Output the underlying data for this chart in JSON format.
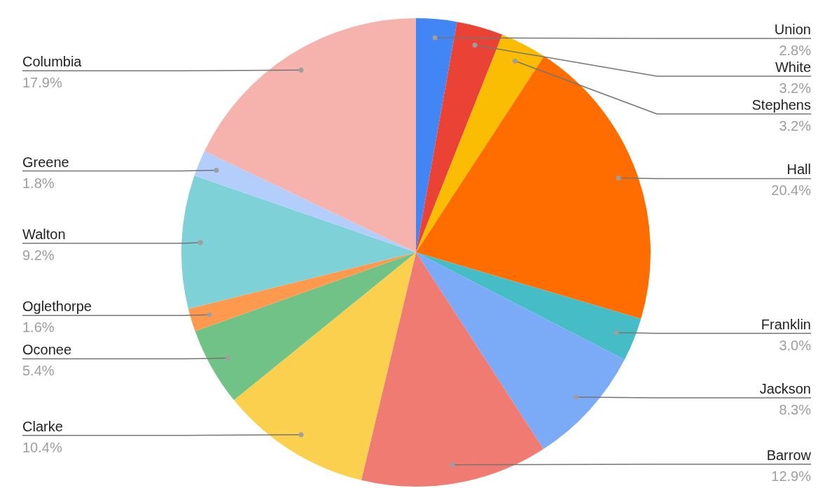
{
  "chart_data": {
    "type": "pie",
    "categories": [
      "Union",
      "White",
      "Stephens",
      "Hall",
      "Franklin",
      "Jackson",
      "Barrow",
      "Clarke",
      "Oconee",
      "Oglethorpe",
      "Walton",
      "Greene",
      "Columbia"
    ],
    "values": [
      2.8,
      3.2,
      3.2,
      20.4,
      3.0,
      8.3,
      12.9,
      10.4,
      5.4,
      1.6,
      9.2,
      1.8,
      17.9
    ],
    "colors": [
      "#4285f4",
      "#ea4335",
      "#fbbc04",
      "#ff6d01",
      "#46bdc6",
      "#7baaf7",
      "#f07b72",
      "#fcd04f",
      "#71c287",
      "#ff994d",
      "#7ed1d7",
      "#b3cefb",
      "#f6b2ad"
    ],
    "value_labels": [
      "2.8%",
      "3.2%",
      "3.2%",
      "20.4%",
      "3.0%",
      "8.3%",
      "12.9%",
      "10.4%",
      "5.4%",
      "1.6%",
      "9.2%",
      "1.8%",
      "17.9%"
    ],
    "legend": false
  }
}
